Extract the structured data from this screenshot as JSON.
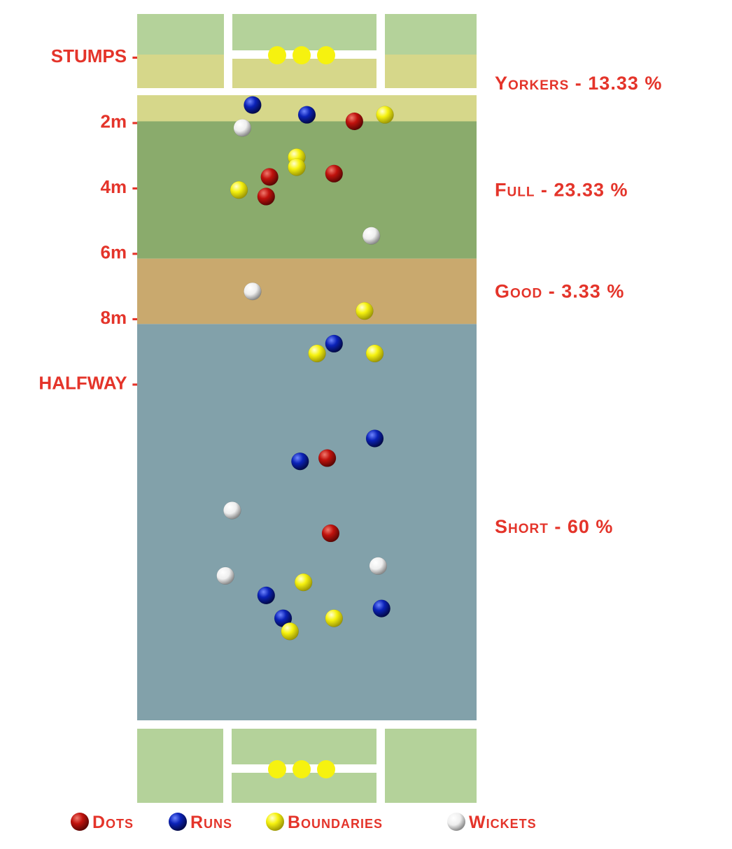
{
  "chart_data": {
    "type": "scatter",
    "title": "",
    "y_labels": [
      {
        "text": "STUMPS -",
        "y": 0
      },
      {
        "text": "2m -",
        "y": 2
      },
      {
        "text": "4m -",
        "y": 4
      },
      {
        "text": "6m -",
        "y": 6
      },
      {
        "text": "8m -",
        "y": 8
      },
      {
        "text": "HALFWAY -",
        "y": 10
      }
    ],
    "zones": [
      {
        "name": "Yorkers",
        "label": "Yorkers - 13.33 %",
        "from": 1.2,
        "to": 2,
        "percent": 13.33,
        "color": "#d6d78a"
      },
      {
        "name": "Full",
        "label": "Full - 23.33 %",
        "from": 2,
        "to": 6.2,
        "percent": 23.33,
        "color": "#8aab6c"
      },
      {
        "name": "Good",
        "label": "Good - 3.33 %",
        "from": 6.2,
        "to": 8.2,
        "percent": 3.33,
        "color": "#c9a96e"
      },
      {
        "name": "Short",
        "label": "Short - 60 %",
        "from": 8.2,
        "to": 20.6,
        "percent": 60,
        "color": "#82a1aa"
      }
    ],
    "series": [
      {
        "name": "Dots",
        "color": "#c0120d",
        "points": [
          {
            "x": 0.64,
            "y": 2.0
          },
          {
            "x": 0.39,
            "y": 3.7
          },
          {
            "x": 0.38,
            "y": 4.3
          },
          {
            "x": 0.58,
            "y": 3.6
          },
          {
            "x": 0.56,
            "y": 12.3
          },
          {
            "x": 0.57,
            "y": 14.6
          }
        ]
      },
      {
        "name": "Runs",
        "color": "#0b22b8",
        "points": [
          {
            "x": 0.34,
            "y": 1.5
          },
          {
            "x": 0.5,
            "y": 1.8
          },
          {
            "x": 0.58,
            "y": 8.8
          },
          {
            "x": 0.7,
            "y": 11.7
          },
          {
            "x": 0.48,
            "y": 12.4
          },
          {
            "x": 0.38,
            "y": 16.5
          },
          {
            "x": 0.43,
            "y": 17.2
          },
          {
            "x": 0.72,
            "y": 16.9
          }
        ]
      },
      {
        "name": "Boundaries",
        "color": "#f6f20f",
        "points": [
          {
            "x": 0.73,
            "y": 1.8
          },
          {
            "x": 0.47,
            "y": 3.1
          },
          {
            "x": 0.47,
            "y": 3.4
          },
          {
            "x": 0.3,
            "y": 4.1
          },
          {
            "x": 0.67,
            "y": 7.8
          },
          {
            "x": 0.53,
            "y": 9.1
          },
          {
            "x": 0.7,
            "y": 9.1
          },
          {
            "x": 0.49,
            "y": 16.1
          },
          {
            "x": 0.58,
            "y": 17.2
          },
          {
            "x": 0.45,
            "y": 17.6
          }
        ]
      },
      {
        "name": "Wickets",
        "color": "#f4f4f4",
        "points": [
          {
            "x": 0.31,
            "y": 2.2
          },
          {
            "x": 0.69,
            "y": 5.5
          },
          {
            "x": 0.34,
            "y": 7.2
          },
          {
            "x": 0.28,
            "y": 13.9
          },
          {
            "x": 0.71,
            "y": 15.6
          },
          {
            "x": 0.26,
            "y": 15.9
          }
        ]
      }
    ],
    "legend": {
      "placement": "bottom",
      "items": [
        "Dots",
        "Runs",
        "Boundaries",
        "Wickets"
      ]
    },
    "stumps": {
      "count": 3,
      "color": "#f6f20f"
    },
    "pitch_colors": {
      "grass": "#b4d29a",
      "crease_band": "#d6d78a",
      "lines": "#ffffff"
    }
  }
}
